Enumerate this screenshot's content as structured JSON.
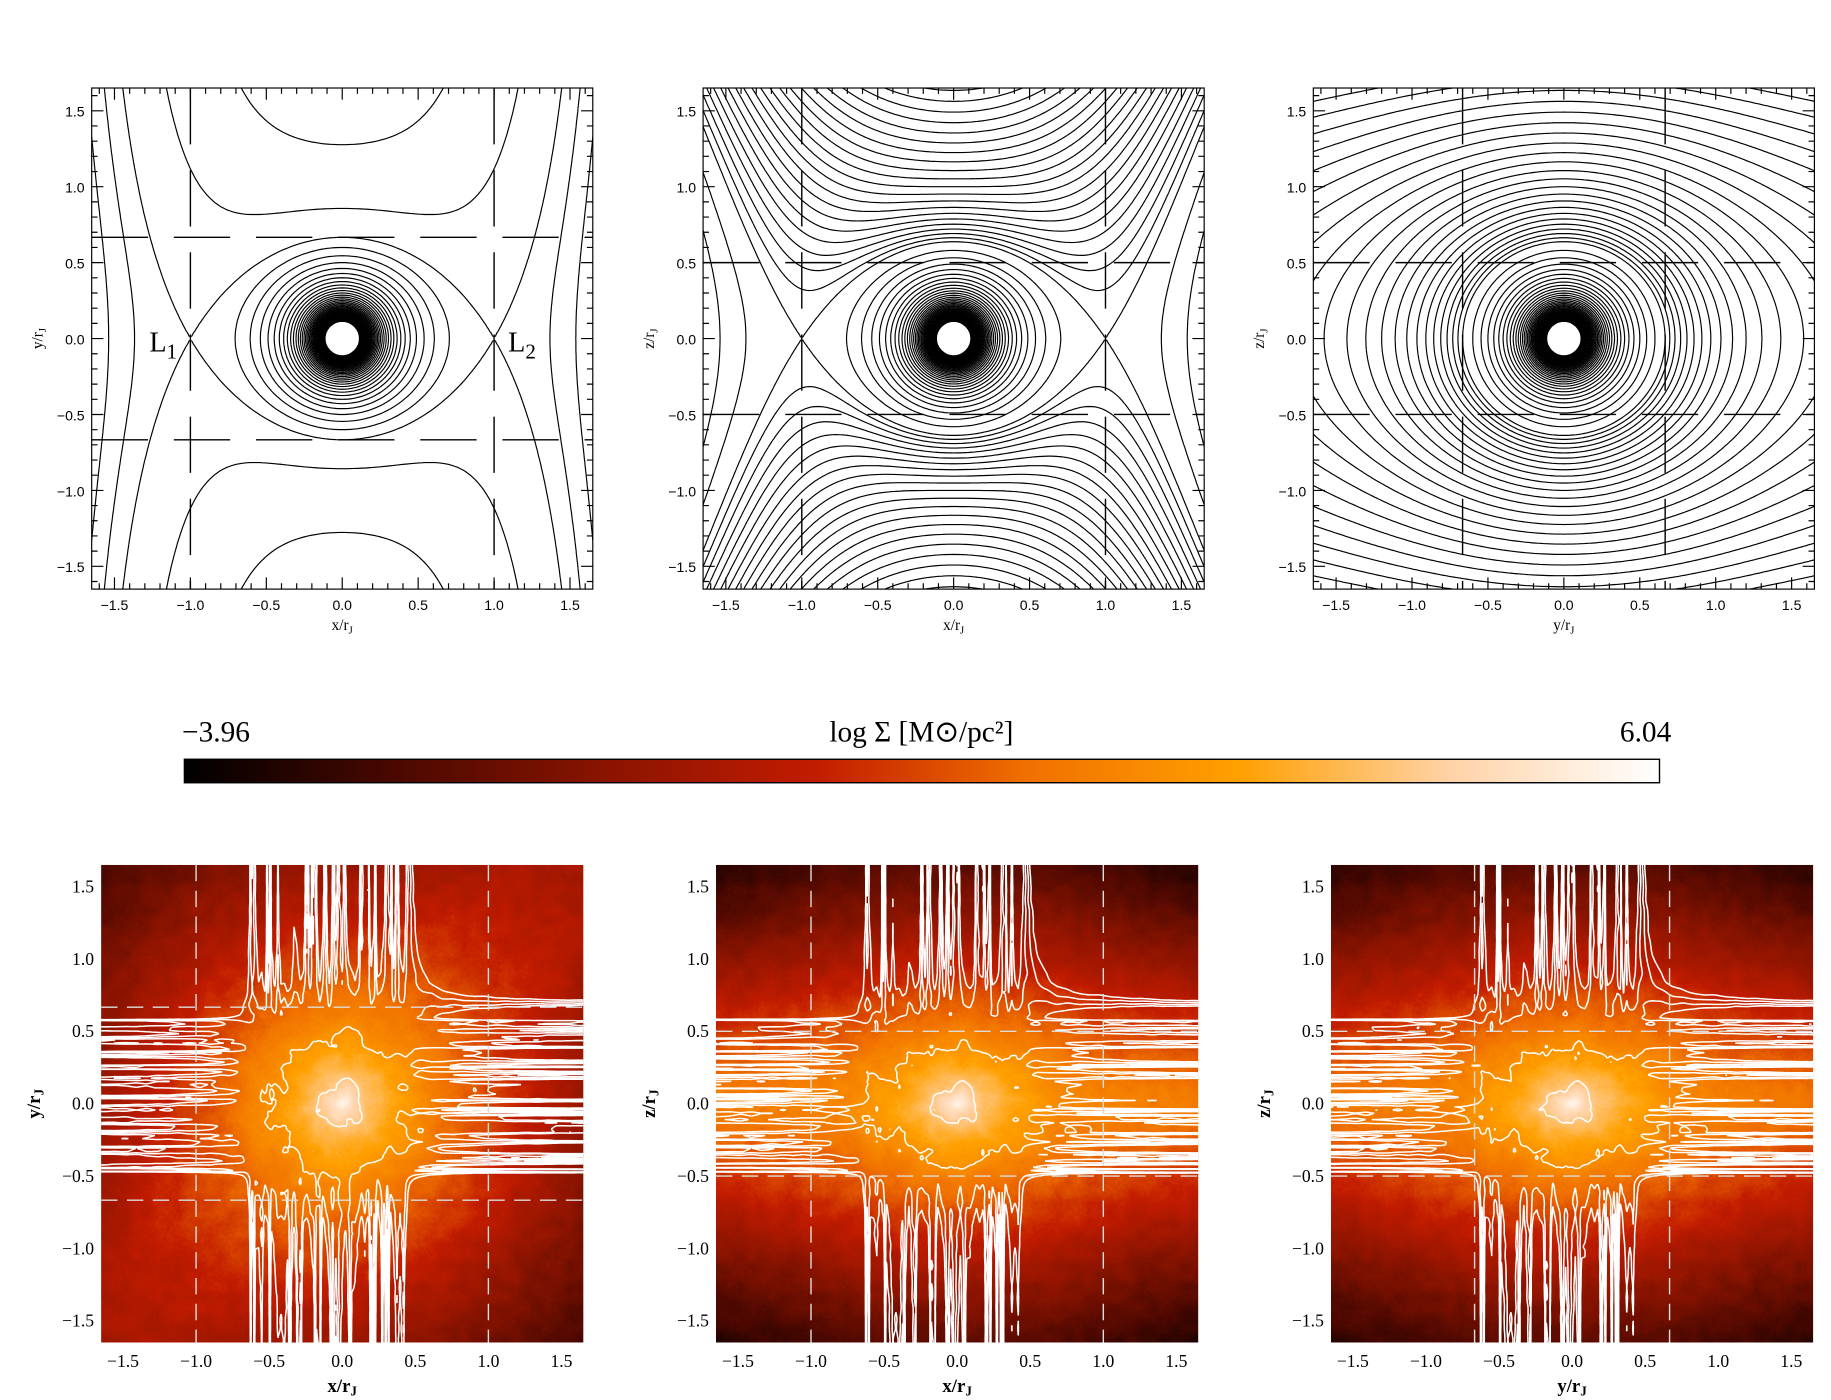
{
  "colorbar": {
    "min_label": "−3.96",
    "max_label": "6.04",
    "label": "log Σ [M⊙/pc²]",
    "min": -3.96,
    "max": 6.04,
    "colormap": [
      "#000000",
      "#4a0800",
      "#8a1400",
      "#c21c00",
      "#f07000",
      "#ffa000",
      "#ffd2a6",
      "#ffffff"
    ]
  },
  "chart_data": [
    {
      "type": "contour",
      "title": "",
      "xlabel": {
        "text": "x/r",
        "sub": "J"
      },
      "ylabel": {
        "text": "y/r",
        "sub": "J"
      },
      "xlim": [
        -1.65,
        1.65
      ],
      "ylim": [
        -1.65,
        1.65
      ],
      "xticks": [
        "−1.5",
        "−1.0",
        "−0.5",
        "0.0",
        "0.5",
        "1.0",
        "1.5"
      ],
      "yticks": [
        "−1.5",
        "−1.0",
        "−0.5",
        "0.0",
        "0.5",
        "1.0",
        "1.5"
      ],
      "tick_values": [
        -1.5,
        -1,
        -0.5,
        0,
        0.5,
        1,
        1.5
      ],
      "guides": {
        "x": [
          -1,
          1
        ],
        "y": [
          -0.667,
          0.667
        ]
      },
      "plane": "xy",
      "annotations": [
        {
          "text": "L",
          "sub": "1",
          "x": -1.0,
          "y": 0.0
        },
        {
          "text": "L",
          "sub": "2",
          "x": 1.0,
          "y": 0.0
        }
      ]
    },
    {
      "type": "contour",
      "title": "",
      "xlabel": {
        "text": "x/r",
        "sub": "J"
      },
      "ylabel": {
        "text": "z/r",
        "sub": "J"
      },
      "xlim": [
        -1.65,
        1.65
      ],
      "ylim": [
        -1.65,
        1.65
      ],
      "xticks": [
        "−1.5",
        "−1.0",
        "−0.5",
        "0.0",
        "0.5",
        "1.0",
        "1.5"
      ],
      "yticks": [
        "−1.5",
        "−1.0",
        "−0.5",
        "0.0",
        "0.5",
        "1.0",
        "1.5"
      ],
      "tick_values": [
        -1.5,
        -1,
        -0.5,
        0,
        0.5,
        1,
        1.5
      ],
      "guides": {
        "x": [
          -1,
          1
        ],
        "y": [
          -0.5,
          0.5
        ]
      },
      "plane": "xz",
      "annotations": []
    },
    {
      "type": "contour",
      "title": "",
      "xlabel": {
        "text": "y/r",
        "sub": "J"
      },
      "ylabel": {
        "text": "z/r",
        "sub": "J"
      },
      "xlim": [
        -1.65,
        1.65
      ],
      "ylim": [
        -1.65,
        1.65
      ],
      "xticks": [
        "−1.5",
        "−1.0",
        "−0.5",
        "0.0",
        "0.5",
        "1.0",
        "1.5"
      ],
      "yticks": [
        "−1.5",
        "−1.0",
        "−0.5",
        "0.0",
        "0.5",
        "1.0",
        "1.5"
      ],
      "tick_values": [
        -1.5,
        -1,
        -0.5,
        0,
        0.5,
        1,
        1.5
      ],
      "guides": {
        "x": [
          -0.667,
          0.667
        ],
        "y": [
          -0.5,
          0.5
        ]
      },
      "plane": "yz",
      "annotations": []
    },
    {
      "type": "heatmap",
      "title": "",
      "xlabel": {
        "text": "x/r",
        "sub": "J"
      },
      "ylabel": {
        "text": "y/r",
        "sub": "J"
      },
      "xlim": [
        -1.65,
        1.65
      ],
      "ylim": [
        -1.65,
        1.65
      ],
      "xticks": [
        "−1.5",
        "−1.0",
        "−0.5",
        "0.0",
        "0.5",
        "1.0",
        "1.5"
      ],
      "yticks": [
        "−1.5",
        "−1.0",
        "−0.5",
        "0.0",
        "0.5",
        "1.0",
        "1.5"
      ],
      "tick_values": [
        -1.5,
        -1,
        -0.5,
        0,
        0.5,
        1,
        1.5
      ],
      "guides": {
        "x": [
          -1,
          1
        ],
        "y": [
          -0.667,
          0.667
        ]
      },
      "plane": "xy",
      "contour_levels": [
        4.3,
        2.8,
        1.3,
        0.0
      ]
    },
    {
      "type": "heatmap",
      "title": "",
      "xlabel": {
        "text": "x/r",
        "sub": "J"
      },
      "ylabel": {
        "text": "z/r",
        "sub": "J"
      },
      "xlim": [
        -1.65,
        1.65
      ],
      "ylim": [
        -1.65,
        1.65
      ],
      "xticks": [
        "−1.5",
        "−1.0",
        "−0.5",
        "0.0",
        "0.5",
        "1.0",
        "1.5"
      ],
      "yticks": [
        "−1.5",
        "−1.0",
        "−0.5",
        "0.0",
        "0.5",
        "1.0",
        "1.5"
      ],
      "tick_values": [
        -1.5,
        -1,
        -0.5,
        0,
        0.5,
        1,
        1.5
      ],
      "guides": {
        "x": [
          -1,
          1
        ],
        "y": [
          -0.5,
          0.5
        ]
      },
      "plane": "xz",
      "contour_levels": [
        4.3,
        2.8,
        1.3,
        0.0
      ]
    },
    {
      "type": "heatmap",
      "title": "",
      "xlabel": {
        "text": "y/r",
        "sub": "J"
      },
      "ylabel": {
        "text": "z/r",
        "sub": "J"
      },
      "xlim": [
        -1.65,
        1.65
      ],
      "ylim": [
        -1.65,
        1.65
      ],
      "xticks": [
        "−1.5",
        "−1.0",
        "−0.5",
        "0.0",
        "0.5",
        "1.0",
        "1.5"
      ],
      "yticks": [
        "−1.5",
        "−1.0",
        "−0.5",
        "0.0",
        "0.5",
        "1.0",
        "1.5"
      ],
      "tick_values": [
        -1.5,
        -1,
        -0.5,
        0,
        0.5,
        1,
        1.5
      ],
      "guides": {
        "x": [
          -0.667,
          0.667
        ],
        "y": [
          -0.5,
          0.5
        ]
      },
      "plane": "yz",
      "contour_levels": [
        4.3,
        2.8,
        1.3,
        0.0
      ]
    }
  ]
}
